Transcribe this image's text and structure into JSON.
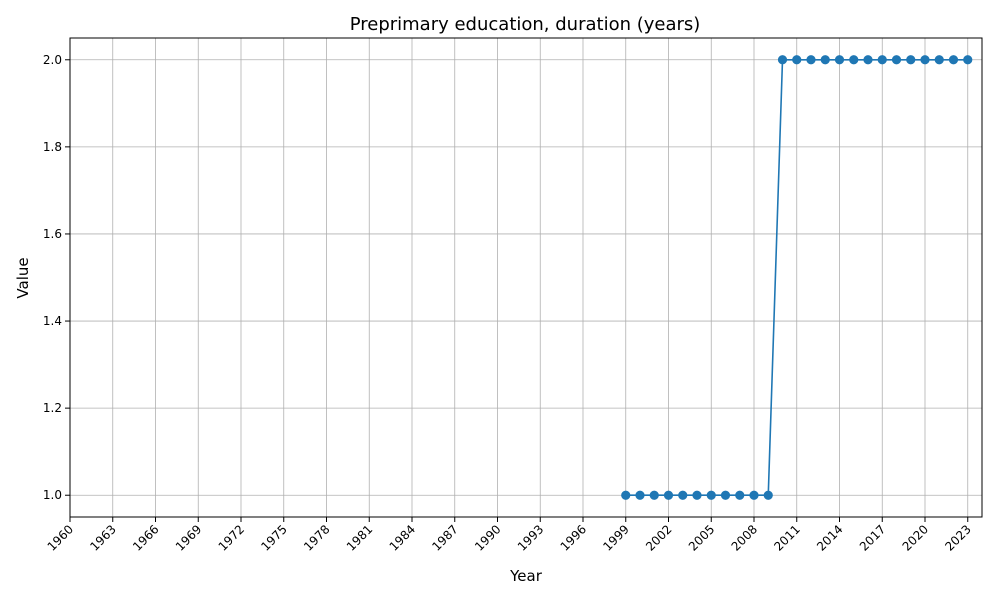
{
  "chart_data": {
    "type": "line",
    "title": "Preprimary education, duration (years)",
    "xlabel": "Year",
    "ylabel": "Value",
    "xlim": [
      1960,
      2024
    ],
    "ylim": [
      0.95,
      2.05
    ],
    "x_ticks": [
      1960,
      1963,
      1966,
      1969,
      1972,
      1975,
      1978,
      1981,
      1984,
      1987,
      1990,
      1993,
      1996,
      1999,
      2002,
      2005,
      2008,
      2011,
      2014,
      2017,
      2020,
      2023
    ],
    "y_ticks": [
      1.0,
      1.2,
      1.4,
      1.6,
      1.8,
      2.0
    ],
    "grid": true,
    "marker": "circle",
    "colors": {
      "line": "#1f77b4",
      "grid": "#b0b0b0",
      "axes": "#000000"
    },
    "series": [
      {
        "x": [
          1999,
          2000,
          2001,
          2002,
          2003,
          2004,
          2005,
          2006,
          2007,
          2008,
          2009,
          2010,
          2011,
          2012,
          2013,
          2014,
          2015,
          2016,
          2017,
          2018,
          2019,
          2020,
          2021,
          2022,
          2023
        ],
        "values": [
          1,
          1,
          1,
          1,
          1,
          1,
          1,
          1,
          1,
          1,
          1,
          2,
          2,
          2,
          2,
          2,
          2,
          2,
          2,
          2,
          2,
          2,
          2,
          2,
          2
        ]
      }
    ]
  }
}
